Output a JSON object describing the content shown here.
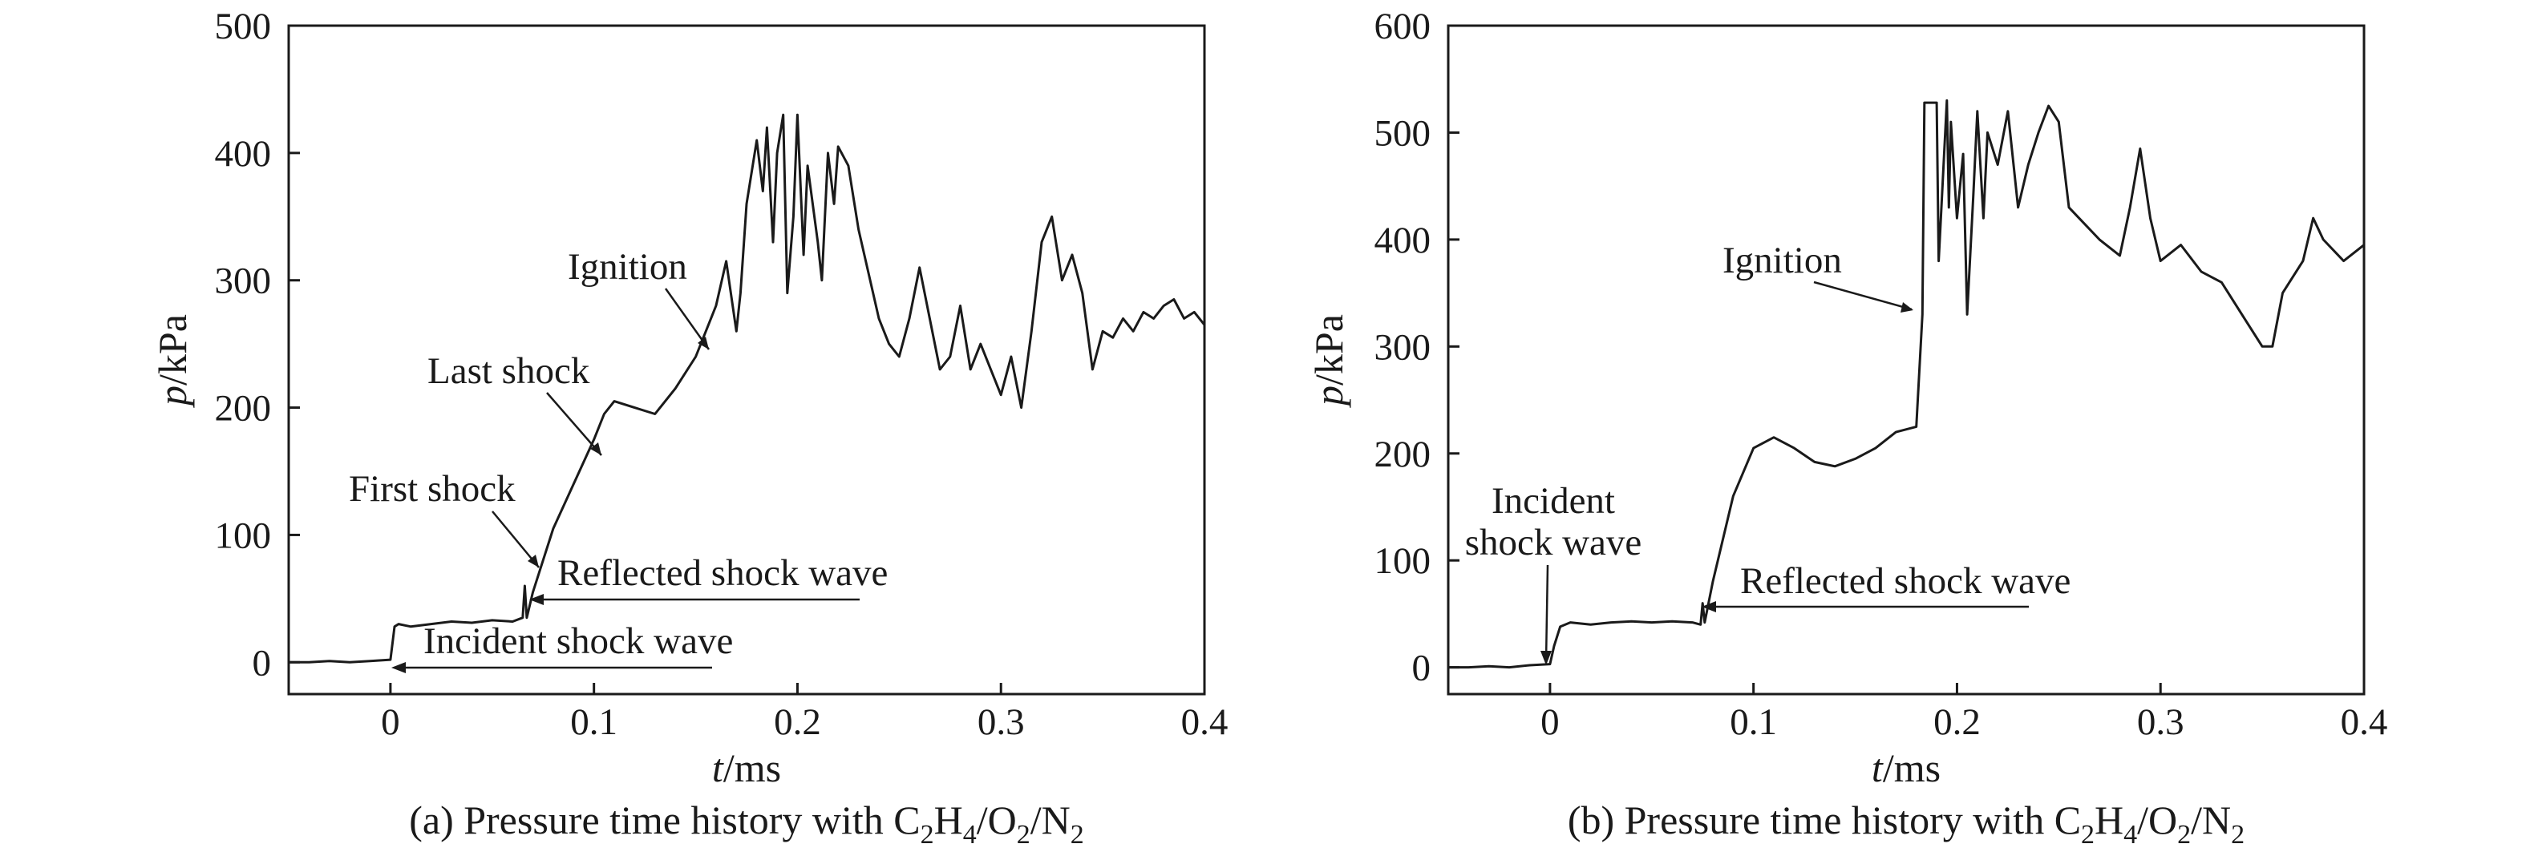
{
  "chart_data": [
    {
      "type": "line",
      "caption_prefix": "(a) Pressure time history with C",
      "caption_formula": [
        {
          "t": "2",
          "sub": true
        },
        {
          "t": "H",
          "sub": false
        },
        {
          "t": "4",
          "sub": true
        },
        {
          "t": "/O",
          "sub": false
        },
        {
          "t": "2",
          "sub": true
        },
        {
          "t": "/N",
          "sub": false
        },
        {
          "t": "2",
          "sub": true
        }
      ],
      "xlabel_var": "t",
      "xlabel_unit": "/ms",
      "ylabel_var": "p",
      "ylabel_unit": "/kPa",
      "xlim": [
        -0.05,
        0.4
      ],
      "ylim": [
        -25,
        500
      ],
      "xticks": [
        0,
        0.1,
        0.2,
        0.3,
        0.4
      ],
      "xtick_labels": [
        "0",
        "0.1",
        "0.2",
        "0.3",
        "0.4"
      ],
      "yticks": [
        0,
        100,
        200,
        300,
        400,
        500
      ],
      "ytick_labels": [
        "0",
        "100",
        "200",
        "300",
        "400",
        "500"
      ],
      "series": [
        {
          "x": [
            -0.05,
            -0.04,
            -0.03,
            -0.02,
            -0.01,
            0,
            0.002,
            0.004,
            0.01,
            0.02,
            0.03,
            0.04,
            0.05,
            0.06,
            0.065,
            0.066,
            0.067,
            0.07,
            0.075,
            0.08,
            0.09,
            0.1,
            0.105,
            0.11,
            0.12,
            0.13,
            0.14,
            0.15,
            0.16,
            0.165,
            0.17,
            0.172,
            0.175,
            0.18,
            0.183,
            0.185,
            0.188,
            0.19,
            0.193,
            0.195,
            0.198,
            0.2,
            0.203,
            0.205,
            0.21,
            0.212,
            0.215,
            0.218,
            0.22,
            0.225,
            0.23,
            0.24,
            0.245,
            0.25,
            0.255,
            0.26,
            0.265,
            0.27,
            0.275,
            0.28,
            0.285,
            0.29,
            0.295,
            0.3,
            0.305,
            0.31,
            0.315,
            0.32,
            0.325,
            0.33,
            0.335,
            0.34,
            0.345,
            0.35,
            0.355,
            0.36,
            0.365,
            0.37,
            0.375,
            0.38,
            0.385,
            0.39,
            0.395,
            0.4
          ],
          "y": [
            0,
            0,
            1,
            0,
            1,
            2,
            28,
            30,
            28,
            30,
            32,
            31,
            33,
            32,
            35,
            60,
            35,
            55,
            80,
            105,
            140,
            175,
            195,
            205,
            200,
            195,
            215,
            240,
            280,
            315,
            260,
            290,
            360,
            410,
            370,
            420,
            330,
            400,
            430,
            290,
            350,
            430,
            320,
            390,
            330,
            300,
            400,
            360,
            405,
            390,
            340,
            270,
            250,
            240,
            270,
            310,
            270,
            230,
            240,
            280,
            230,
            250,
            230,
            210,
            240,
            200,
            260,
            330,
            350,
            300,
            320,
            290,
            230,
            260,
            255,
            270,
            260,
            275,
            270,
            280,
            285,
            270,
            275,
            265
          ]
        }
      ],
      "annotations": [
        {
          "text": "Ignition"
        },
        {
          "text": "Last shock"
        },
        {
          "text": "First shock"
        },
        {
          "text": "Reflected shock wave"
        },
        {
          "text": "Incident shock wave"
        }
      ]
    },
    {
      "type": "line",
      "caption_prefix": "(b) Pressure time history with C",
      "caption_formula": [
        {
          "t": "2",
          "sub": true
        },
        {
          "t": "H",
          "sub": false
        },
        {
          "t": "4",
          "sub": true
        },
        {
          "t": "/O",
          "sub": false
        },
        {
          "t": "2",
          "sub": true
        },
        {
          "t": "/N",
          "sub": false
        },
        {
          "t": "2",
          "sub": true
        }
      ],
      "xlabel_var": "t",
      "xlabel_unit": "/ms",
      "ylabel_var": "p",
      "ylabel_unit": "/kPa",
      "xlim": [
        -0.05,
        0.4
      ],
      "ylim": [
        -25,
        600
      ],
      "xticks": [
        0,
        0.1,
        0.2,
        0.3,
        0.4
      ],
      "xtick_labels": [
        "0",
        "0.1",
        "0.2",
        "0.3",
        "0.4"
      ],
      "yticks": [
        0,
        100,
        200,
        300,
        400,
        500,
        600
      ],
      "ytick_labels": [
        "0",
        "100",
        "200",
        "300",
        "400",
        "500",
        "600"
      ],
      "series": [
        {
          "x": [
            -0.05,
            -0.04,
            -0.03,
            -0.02,
            -0.01,
            0,
            0.002,
            0.005,
            0.01,
            0.02,
            0.03,
            0.04,
            0.05,
            0.06,
            0.07,
            0.074,
            0.075,
            0.076,
            0.08,
            0.085,
            0.09,
            0.1,
            0.11,
            0.12,
            0.13,
            0.14,
            0.15,
            0.16,
            0.17,
            0.18,
            0.183,
            0.184,
            0.185,
            0.19,
            0.191,
            0.195,
            0.196,
            0.197,
            0.2,
            0.203,
            0.205,
            0.208,
            0.21,
            0.213,
            0.215,
            0.22,
            0.225,
            0.23,
            0.235,
            0.24,
            0.245,
            0.25,
            0.255,
            0.26,
            0.27,
            0.28,
            0.285,
            0.29,
            0.295,
            0.3,
            0.31,
            0.32,
            0.33,
            0.34,
            0.35,
            0.355,
            0.36,
            0.37,
            0.375,
            0.38,
            0.39,
            0.4
          ],
          "y": [
            0,
            0,
            1,
            0,
            2,
            3,
            20,
            38,
            42,
            40,
            42,
            43,
            42,
            43,
            42,
            40,
            60,
            42,
            80,
            120,
            160,
            205,
            215,
            205,
            192,
            188,
            195,
            205,
            220,
            225,
            330,
            528,
            528,
            528,
            380,
            530,
            430,
            510,
            420,
            480,
            330,
            440,
            520,
            420,
            500,
            470,
            520,
            430,
            470,
            500,
            525,
            510,
            430,
            420,
            400,
            385,
            430,
            485,
            420,
            380,
            395,
            370,
            360,
            330,
            300,
            300,
            350,
            380,
            420,
            400,
            380,
            395
          ]
        }
      ],
      "annotations": [
        {
          "text": "Ignition"
        },
        {
          "text": "Incident"
        },
        {
          "text": "shock wave"
        },
        {
          "text": "Reflected shock wave"
        }
      ]
    }
  ]
}
